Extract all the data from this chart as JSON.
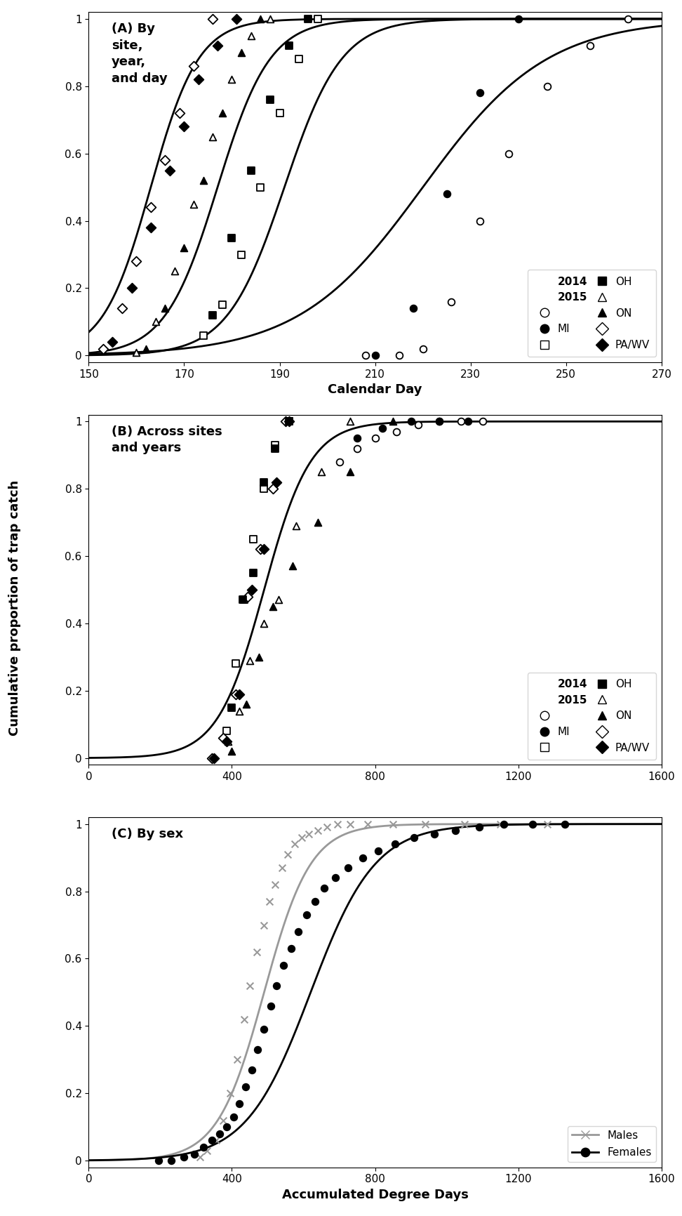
{
  "panel_A": {
    "xlabel": "Calendar Day",
    "xlim": [
      150,
      270
    ],
    "ylim": [
      0,
      1
    ],
    "xticks": [
      150,
      170,
      190,
      210,
      230,
      250,
      270
    ],
    "yticks": [
      0,
      0.2,
      0.4,
      0.6,
      0.8,
      1.0
    ],
    "curves": [
      {
        "mu": 163,
        "sigma": 5,
        "color": "black"
      },
      {
        "mu": 177,
        "sigma": 5.5,
        "color": "black"
      },
      {
        "mu": 191,
        "sigma": 6,
        "color": "black"
      },
      {
        "mu": 220,
        "sigma": 13,
        "color": "black"
      }
    ],
    "scatter_2014": {
      "PA": {
        "x": [
          153,
          157,
          160,
          163,
          166,
          169,
          172,
          176
        ],
        "y": [
          0.02,
          0.14,
          0.28,
          0.44,
          0.58,
          0.72,
          0.86,
          1.0
        ],
        "marker": "D",
        "fc": "white",
        "ec": "black",
        "ms": 7
      },
      "ON": {
        "x": [
          160,
          164,
          168,
          172,
          176,
          180,
          184,
          188
        ],
        "y": [
          0.01,
          0.1,
          0.25,
          0.45,
          0.65,
          0.82,
          0.95,
          1.0
        ],
        "marker": "^",
        "fc": "white",
        "ec": "black",
        "ms": 7
      },
      "OH": {
        "x": [
          174,
          178,
          182,
          186,
          190,
          194,
          198
        ],
        "y": [
          0.06,
          0.15,
          0.3,
          0.5,
          0.72,
          0.88,
          1.0
        ],
        "marker": "s",
        "fc": "white",
        "ec": "black",
        "ms": 7
      },
      "MI": {
        "x": [
          208,
          215,
          220,
          226,
          232,
          238,
          246,
          255,
          263
        ],
        "y": [
          0.0,
          0.0,
          0.02,
          0.16,
          0.4,
          0.6,
          0.8,
          0.92,
          1.0
        ],
        "marker": "o",
        "fc": "white",
        "ec": "black",
        "ms": 7
      }
    },
    "scatter_2015": {
      "PA": {
        "x": [
          155,
          159,
          163,
          167,
          170,
          173,
          177,
          181
        ],
        "y": [
          0.04,
          0.2,
          0.38,
          0.55,
          0.68,
          0.82,
          0.92,
          1.0
        ],
        "marker": "D",
        "fc": "black",
        "ec": "black",
        "ms": 7
      },
      "ON": {
        "x": [
          162,
          166,
          170,
          174,
          178,
          182,
          186
        ],
        "y": [
          0.02,
          0.14,
          0.32,
          0.52,
          0.72,
          0.9,
          1.0
        ],
        "marker": "^",
        "fc": "black",
        "ec": "black",
        "ms": 7
      },
      "OH": {
        "x": [
          176,
          180,
          184,
          188,
          192,
          196
        ],
        "y": [
          0.12,
          0.35,
          0.55,
          0.76,
          0.92,
          1.0
        ],
        "marker": "s",
        "fc": "black",
        "ec": "black",
        "ms": 7
      },
      "MI": {
        "x": [
          210,
          218,
          225,
          232,
          240
        ],
        "y": [
          0.0,
          0.14,
          0.48,
          0.78,
          1.0
        ],
        "marker": "o",
        "fc": "black",
        "ec": "black",
        "ms": 7
      }
    }
  },
  "panel_B": {
    "xlabel": "",
    "xlim": [
      0,
      1600
    ],
    "ylim": [
      0,
      1
    ],
    "xticks": [
      0,
      400,
      800,
      1200,
      1600
    ],
    "yticks": [
      0,
      0.2,
      0.4,
      0.6,
      0.8,
      1.0
    ],
    "curve": {
      "mu": 490,
      "sigma": 65,
      "color": "black"
    },
    "scatter_2014": {
      "MI": {
        "x": [
          700,
          750,
          800,
          860,
          920,
          980,
          1040,
          1100
        ],
        "y": [
          0.88,
          0.92,
          0.95,
          0.97,
          0.99,
          1.0,
          1.0,
          1.0
        ],
        "marker": "o",
        "fc": "white",
        "ec": "black",
        "ms": 7
      },
      "OH": {
        "x": [
          385,
          410,
          435,
          460,
          490,
          520,
          560
        ],
        "y": [
          0.08,
          0.28,
          0.47,
          0.65,
          0.8,
          0.93,
          1.0
        ],
        "marker": "s",
        "fc": "white",
        "ec": "black",
        "ms": 7
      },
      "ON": {
        "x": [
          390,
          420,
          450,
          490,
          530,
          580,
          650,
          730
        ],
        "y": [
          0.05,
          0.14,
          0.29,
          0.4,
          0.47,
          0.69,
          0.85,
          1.0
        ],
        "marker": "^",
        "fc": "white",
        "ec": "black",
        "ms": 7
      },
      "PA": {
        "x": [
          345,
          375,
          410,
          445,
          480,
          515,
          550
        ],
        "y": [
          0.0,
          0.06,
          0.19,
          0.48,
          0.62,
          0.8,
          1.0
        ],
        "marker": "D",
        "fc": "white",
        "ec": "black",
        "ms": 7
      }
    },
    "scatter_2015": {
      "MI": {
        "x": [
          750,
          820,
          900,
          980,
          1060
        ],
        "y": [
          0.95,
          0.98,
          1.0,
          1.0,
          1.0
        ],
        "marker": "o",
        "fc": "black",
        "ec": "black",
        "ms": 7
      },
      "OH": {
        "x": [
          400,
          430,
          460,
          490,
          520,
          560
        ],
        "y": [
          0.15,
          0.47,
          0.55,
          0.82,
          0.92,
          1.0
        ],
        "marker": "s",
        "fc": "black",
        "ec": "black",
        "ms": 7
      },
      "ON": {
        "x": [
          400,
          440,
          475,
          515,
          570,
          640,
          730,
          850
        ],
        "y": [
          0.02,
          0.16,
          0.3,
          0.45,
          0.57,
          0.7,
          0.85,
          1.0
        ],
        "marker": "^",
        "fc": "black",
        "ec": "black",
        "ms": 7
      },
      "PA": {
        "x": [
          350,
          385,
          420,
          455,
          490,
          525,
          560
        ],
        "y": [
          0.0,
          0.05,
          0.19,
          0.5,
          0.62,
          0.82,
          1.0
        ],
        "marker": "D",
        "fc": "black",
        "ec": "black",
        "ms": 7
      }
    }
  },
  "panel_C": {
    "xlabel": "Accumulated Degree Days",
    "xlim": [
      0,
      1600
    ],
    "ylim": [
      0,
      1
    ],
    "xticks": [
      0,
      400,
      800,
      1200,
      1600
    ],
    "yticks": [
      0,
      0.2,
      0.4,
      0.6,
      0.8,
      1.0
    ],
    "curve_males": {
      "mu": 490,
      "sigma": 65,
      "color": "#999999"
    },
    "curve_females": {
      "mu": 620,
      "sigma": 90,
      "color": "black"
    },
    "scatter_males": {
      "x": [
        310,
        330,
        355,
        375,
        395,
        415,
        435,
        450,
        470,
        490,
        505,
        520,
        540,
        555,
        575,
        595,
        615,
        640,
        665,
        695,
        730,
        780,
        850,
        940,
        1050,
        1150,
        1280
      ],
      "y": [
        0.01,
        0.03,
        0.06,
        0.12,
        0.2,
        0.3,
        0.42,
        0.52,
        0.62,
        0.7,
        0.77,
        0.82,
        0.87,
        0.91,
        0.94,
        0.96,
        0.97,
        0.98,
        0.99,
        1.0,
        1.0,
        1.0,
        1.0,
        1.0,
        1.0,
        1.0,
        1.0
      ],
      "marker": "x",
      "color": "#999999",
      "ms": 7
    },
    "scatter_females": {
      "x": [
        195,
        230,
        265,
        295,
        320,
        345,
        365,
        385,
        405,
        420,
        438,
        455,
        472,
        490,
        508,
        525,
        545,
        565,
        585,
        608,
        632,
        658,
        690,
        725,
        765,
        808,
        855,
        908,
        965,
        1025,
        1090,
        1160,
        1240,
        1330
      ],
      "y": [
        0.0,
        0.0,
        0.01,
        0.02,
        0.04,
        0.06,
        0.08,
        0.1,
        0.13,
        0.17,
        0.22,
        0.27,
        0.33,
        0.39,
        0.46,
        0.52,
        0.58,
        0.63,
        0.68,
        0.73,
        0.77,
        0.81,
        0.84,
        0.87,
        0.9,
        0.92,
        0.94,
        0.96,
        0.97,
        0.98,
        0.99,
        1.0,
        1.0,
        1.0
      ],
      "marker": "o",
      "color": "black",
      "ms": 7
    }
  },
  "ylabel": "Cumulative proportion of trap catch",
  "legend_fontsize": 11,
  "label_fontsize": 13,
  "tick_fontsize": 11,
  "title_fontsize": 13
}
